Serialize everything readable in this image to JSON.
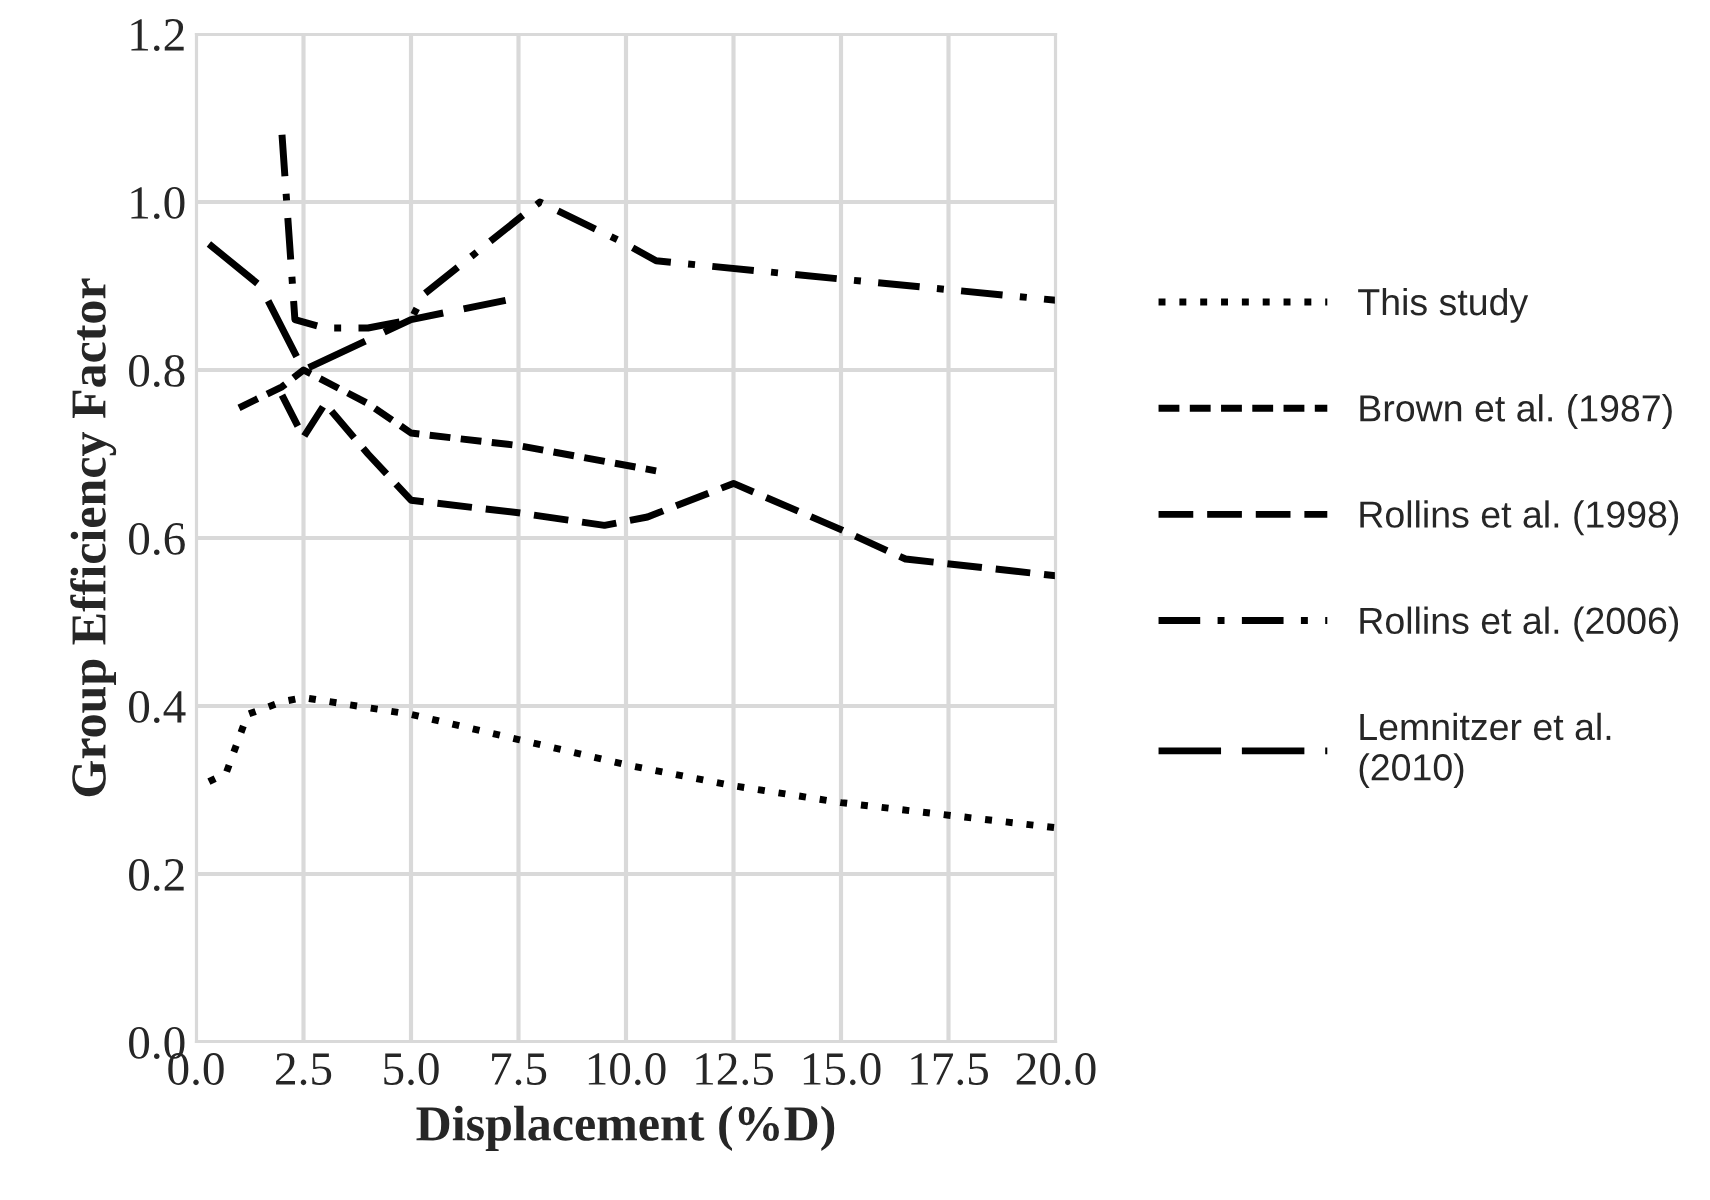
{
  "chart_data": {
    "type": "line",
    "xlabel": "Displacement (%D)",
    "ylabel": "Group Efficiency Factor",
    "xlim": [
      0,
      20
    ],
    "xticks": [
      {
        "value": 0,
        "label": "0.0"
      },
      2.5,
      {
        "value": 5,
        "label": "5.0"
      },
      7.5,
      {
        "value": 10,
        "label": "10.0"
      },
      12.5,
      {
        "value": 15,
        "label": "15.0"
      },
      17.5,
      {
        "value": 20,
        "label": "20.0"
      }
    ],
    "ylim": [
      0,
      1.2
    ],
    "yticks": [
      {
        "value": 0,
        "label": "0.0"
      },
      0.2,
      0.4,
      0.6,
      0.8,
      {
        "value": 1,
        "label": "1.0"
      },
      1.2
    ],
    "grid": true,
    "legend": "right",
    "series": [
      {
        "name": "This study",
        "color": "#000000",
        "line_style": "dotted",
        "x": [
          0.3,
          0.7,
          1.2,
          2,
          2.5,
          5,
          7.5,
          10,
          12.5,
          15,
          17.5,
          20
        ],
        "values": [
          0.31,
          0.32,
          0.39,
          0.405,
          0.41,
          0.39,
          0.36,
          0.33,
          0.305,
          0.285,
          0.27,
          0.255
        ]
      },
      {
        "name": "Brown et al. (1987)",
        "color": "#000000",
        "line_style": "dashed",
        "x": [
          1,
          2,
          2.5,
          4,
          5,
          7.5,
          10.7
        ],
        "values": [
          0.755,
          0.78,
          0.8,
          0.76,
          0.725,
          0.71,
          0.68
        ]
      },
      {
        "name": "Rollins et al. (1998)",
        "color": "#000000",
        "line_style": "longdashed",
        "x": [
          2,
          2.5,
          3,
          4,
          5,
          7.5,
          9.5,
          10.5,
          12.5,
          15,
          16.5,
          20
        ],
        "values": [
          0.77,
          0.72,
          0.76,
          0.7,
          0.645,
          0.63,
          0.615,
          0.625,
          0.665,
          0.61,
          0.575,
          0.555
        ]
      },
      {
        "name": "Rollins et al. (2006)",
        "color": "#000000",
        "line_style": "dashdot",
        "x": [
          2,
          2.3,
          3,
          4,
          5,
          5.3,
          7.5,
          8,
          10,
          10.7,
          20
        ],
        "values": [
          1.08,
          0.86,
          0.85,
          0.85,
          0.86,
          0.89,
          0.98,
          1.0,
          0.95,
          0.93,
          0.883
        ]
      },
      {
        "name": "Lemnitzer et al.\n(2010)",
        "color": "#000000",
        "line_style": "longdash",
        "x": [
          0.3,
          1.5,
          2.5,
          5,
          7.2
        ],
        "values": [
          0.95,
          0.9,
          0.8,
          0.86,
          0.883
        ]
      }
    ]
  }
}
